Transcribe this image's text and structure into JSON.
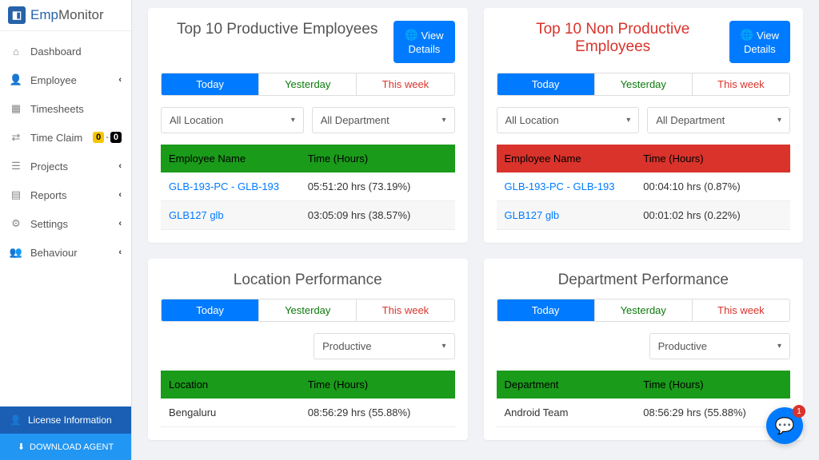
{
  "logo": {
    "prefix": "Emp",
    "suffix": "Monitor"
  },
  "nav": {
    "items": [
      {
        "label": "Dashboard",
        "icon": "⌂",
        "expand": false
      },
      {
        "label": "Employee",
        "icon": "👤",
        "expand": true
      },
      {
        "label": "Timesheets",
        "icon": "▦",
        "expand": false
      },
      {
        "label": "Time Claim",
        "icon": "⇄",
        "expand": false,
        "badge": true,
        "b1": "0",
        "b2": "0"
      },
      {
        "label": "Projects",
        "icon": "☰",
        "expand": true
      },
      {
        "label": "Reports",
        "icon": "▤",
        "expand": true
      },
      {
        "label": "Settings",
        "icon": "⚙",
        "expand": true
      },
      {
        "label": "Behaviour",
        "icon": "👥",
        "expand": true
      }
    ]
  },
  "footer": {
    "license": "License Information",
    "download": "DOWNLOAD AGENT"
  },
  "tabs": {
    "today": "Today",
    "yesterday": "Yesterday",
    "week": "This week"
  },
  "filters": {
    "location": "All Location",
    "department": "All Department",
    "productive": "Productive"
  },
  "columns": {
    "employee": "Employee Name",
    "time": "Time (Hours)",
    "location": "Location",
    "department": "Department"
  },
  "cards": {
    "productive": {
      "title": "Top 10 Productive Employees",
      "view": "View",
      "details": "Details",
      "rows": [
        {
          "name": "GLB-193-PC - GLB-193",
          "time": "05:51:20 hrs (73.19%)"
        },
        {
          "name": "GLB127 glb",
          "time": "03:05:09 hrs (38.57%)"
        }
      ]
    },
    "nonproductive": {
      "title": "Top 10 Non Productive Employees",
      "view": "View",
      "details": "Details",
      "rows": [
        {
          "name": "GLB-193-PC - GLB-193",
          "time": "00:04:10 hrs (0.87%)"
        },
        {
          "name": "GLB127 glb",
          "time": "00:01:02 hrs (0.22%)"
        }
      ]
    },
    "location": {
      "title": "Location Performance",
      "rows": [
        {
          "name": "Bengaluru",
          "time": "08:56:29 hrs (55.88%)"
        }
      ]
    },
    "department": {
      "title": "Department Performance",
      "rows": [
        {
          "name": "Android Team",
          "time": "08:56:29 hrs (55.88%)"
        }
      ]
    }
  },
  "chat": {
    "count": "1"
  },
  "colors": {
    "primary": "#007bff",
    "green": "#1a9b1a",
    "red": "#d9332b",
    "sidebar_blue": "#1a5fb4"
  }
}
